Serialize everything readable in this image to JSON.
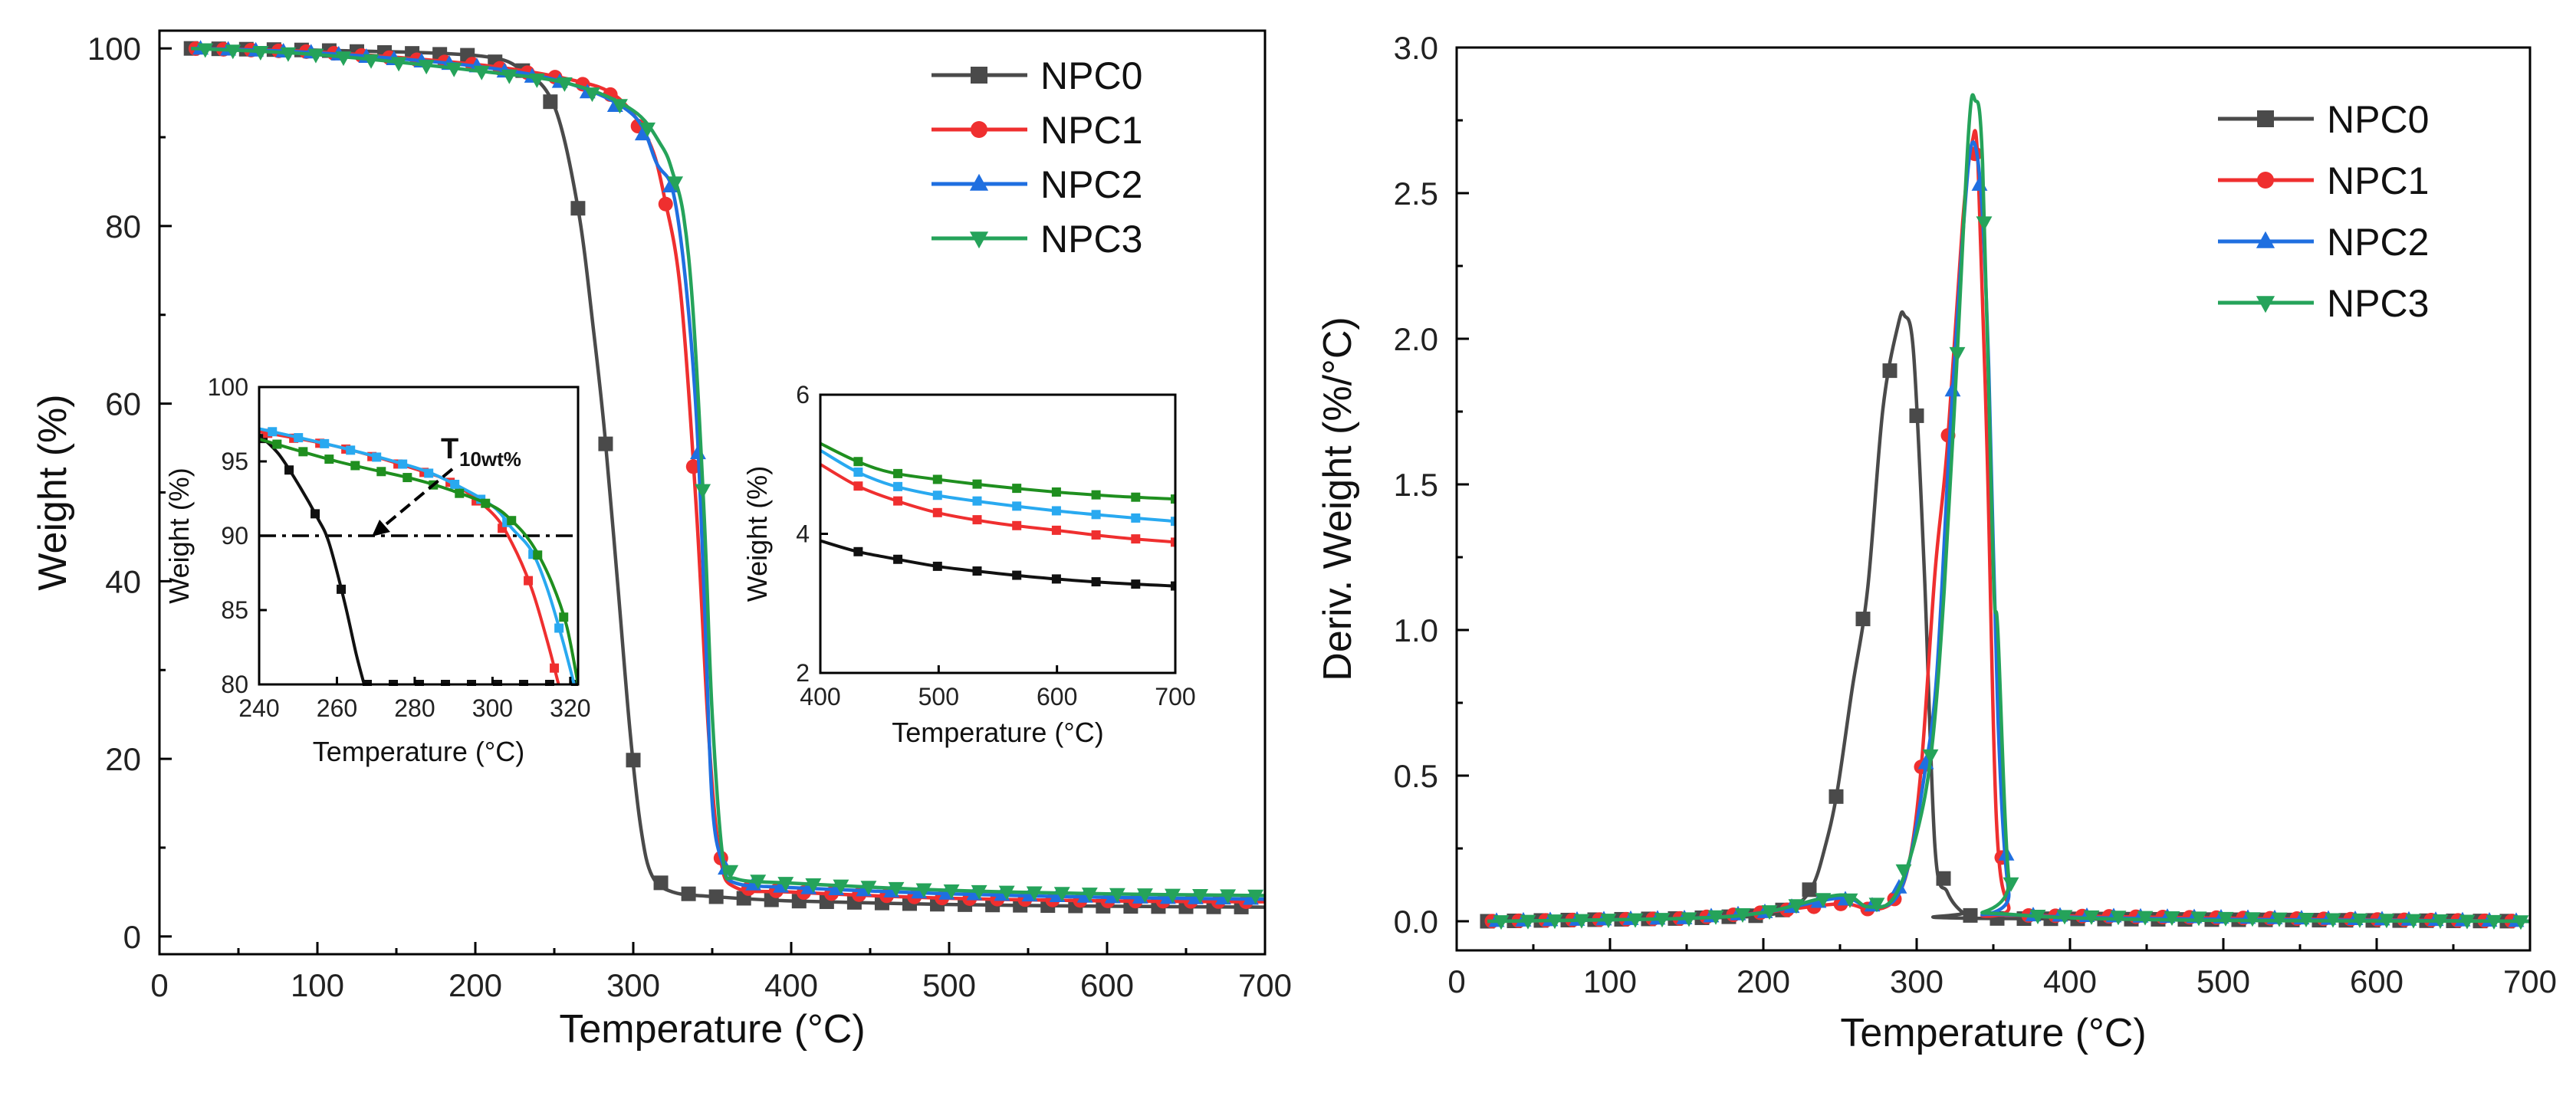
{
  "colors": {
    "NPC0": "#4a4a4a",
    "NPC1": "#ef2f2f",
    "NPC2": "#1f6fe0",
    "NPC3": "#25a35a",
    "NPC0_inset": "#111111",
    "NPC2_inset": "#29a9f0",
    "NPC3_inset": "#1f8f1f"
  },
  "chart_data": [
    {
      "id": "tga",
      "type": "line",
      "title": "",
      "xlabel": "Temperature (°C)",
      "ylabel": "Weight (%)",
      "xlim": [
        0,
        700
      ],
      "ylim": [
        -2,
        102
      ],
      "xticks": [
        "0",
        "100",
        "200",
        "300",
        "400",
        "500",
        "600",
        "700"
      ],
      "yticks": [
        "0",
        "20",
        "40",
        "60",
        "80",
        "100"
      ],
      "legend": "top-right",
      "series": [
        {
          "name": "NPC0",
          "marker": "square",
          "points": [
            [
              20,
              100
            ],
            [
              100,
              99.8
            ],
            [
              200,
              99.2
            ],
            [
              230,
              97.5
            ],
            [
              250,
              93.5
            ],
            [
              265,
              82
            ],
            [
              275,
              68
            ],
            [
              282,
              56.5
            ],
            [
              290,
              40
            ],
            [
              298,
              23
            ],
            [
              305,
              12
            ],
            [
              312,
              6.8
            ],
            [
              325,
              5
            ],
            [
              350,
              4.5
            ],
            [
              400,
              4
            ],
            [
              500,
              3.6
            ],
            [
              600,
              3.4
            ],
            [
              700,
              3.3
            ]
          ]
        },
        {
          "name": "NPC1",
          "marker": "circle",
          "points": [
            [
              20,
              100
            ],
            [
              100,
              99.6
            ],
            [
              200,
              98.2
            ],
            [
              260,
              96.5
            ],
            [
              290,
              94.5
            ],
            [
              310,
              89.5
            ],
            [
              320,
              83
            ],
            [
              330,
              72.5
            ],
            [
              340,
              48
            ],
            [
              348,
              22
            ],
            [
              355,
              9
            ],
            [
              365,
              5.5
            ],
            [
              400,
              5
            ],
            [
              500,
              4.3
            ],
            [
              600,
              4
            ],
            [
              700,
              3.9
            ]
          ]
        },
        {
          "name": "NPC2",
          "marker": "triangle-up",
          "points": [
            [
              20,
              100
            ],
            [
              100,
              99.5
            ],
            [
              200,
              98
            ],
            [
              260,
              96
            ],
            [
              300,
              92.5
            ],
            [
              315,
              87
            ],
            [
              325,
              84
            ],
            [
              333,
              74
            ],
            [
              340,
              58.5
            ],
            [
              345,
              38
            ],
            [
              350,
              15
            ],
            [
              357,
              8
            ],
            [
              365,
              6
            ],
            [
              400,
              5.5
            ],
            [
              500,
              4.8
            ],
            [
              600,
              4.4
            ],
            [
              700,
              4.2
            ]
          ]
        },
        {
          "name": "NPC3",
          "marker": "triangle-down",
          "points": [
            [
              20,
              100
            ],
            [
              100,
              99.3
            ],
            [
              200,
              97.5
            ],
            [
              260,
              96
            ],
            [
              300,
              93
            ],
            [
              318,
              89
            ],
            [
              325,
              86
            ],
            [
              332,
              81
            ],
            [
              338,
              70
            ],
            [
              345,
              47
            ],
            [
              350,
              25
            ],
            [
              357,
              8.5
            ],
            [
              365,
              6.5
            ],
            [
              400,
              6
            ],
            [
              500,
              5.2
            ],
            [
              600,
              4.8
            ],
            [
              700,
              4.6
            ]
          ]
        }
      ]
    },
    {
      "id": "inset-onset",
      "type": "line",
      "xlabel": "Temperature (°C)",
      "ylabel": "Weight (%)",
      "xlim": [
        240,
        322
      ],
      "ylim": [
        80,
        100
      ],
      "xticks": [
        "240",
        "260",
        "280",
        "300",
        "320"
      ],
      "yticks": [
        "80",
        "85",
        "90",
        "95",
        "100"
      ],
      "reference_line": 90,
      "annotation_main": "T",
      "annotation_sub": "10wt%",
      "series": [
        {
          "name": "NPC0",
          "points": [
            [
              240,
              96.8
            ],
            [
              245,
              95.5
            ],
            [
              250,
              93.5
            ],
            [
              255,
              91.2
            ],
            [
              258,
              89.5
            ],
            [
              262,
              85.5
            ],
            [
              265,
              82
            ],
            [
              267,
              80
            ]
          ]
        },
        {
          "name": "NPC1",
          "points": [
            [
              240,
              97
            ],
            [
              260,
              96
            ],
            [
              280,
              94.5
            ],
            [
              290,
              93.5
            ],
            [
              300,
              91.5
            ],
            [
              305,
              89.5
            ],
            [
              310,
              86.5
            ],
            [
              314,
              83
            ],
            [
              317,
              80
            ]
          ]
        },
        {
          "name": "NPC2",
          "points": [
            [
              240,
              97.2
            ],
            [
              260,
              96
            ],
            [
              280,
              94.6
            ],
            [
              290,
              93.5
            ],
            [
              300,
              92
            ],
            [
              305,
              90.5
            ],
            [
              310,
              89
            ],
            [
              314,
              86.5
            ],
            [
              318,
              83
            ],
            [
              321,
              80
            ]
          ]
        },
        {
          "name": "NPC3",
          "points": [
            [
              240,
              96.5
            ],
            [
              260,
              95
            ],
            [
              280,
              93.8
            ],
            [
              290,
              93
            ],
            [
              300,
              92
            ],
            [
              305,
              91
            ],
            [
              310,
              89.5
            ],
            [
              315,
              87
            ],
            [
              319,
              84
            ],
            [
              322,
              80
            ]
          ]
        }
      ]
    },
    {
      "id": "inset-residue",
      "type": "line",
      "xlabel": "Temperature (°C)",
      "ylabel": "Weight (%)",
      "xlim": [
        400,
        700
      ],
      "ylim": [
        2,
        6
      ],
      "xticks": [
        "400",
        "500",
        "600",
        "700"
      ],
      "yticks": [
        "2",
        "4",
        "6"
      ],
      "series": [
        {
          "name": "NPC0",
          "points": [
            [
              400,
              3.9
            ],
            [
              430,
              3.75
            ],
            [
              460,
              3.65
            ],
            [
              500,
              3.53
            ],
            [
              550,
              3.43
            ],
            [
              600,
              3.35
            ],
            [
              650,
              3.29
            ],
            [
              700,
              3.25
            ]
          ]
        },
        {
          "name": "NPC1",
          "points": [
            [
              400,
              5.0
            ],
            [
              430,
              4.7
            ],
            [
              460,
              4.5
            ],
            [
              500,
              4.3
            ],
            [
              550,
              4.15
            ],
            [
              600,
              4.05
            ],
            [
              650,
              3.95
            ],
            [
              700,
              3.88
            ]
          ]
        },
        {
          "name": "NPC2",
          "points": [
            [
              400,
              5.2
            ],
            [
              430,
              4.9
            ],
            [
              460,
              4.7
            ],
            [
              500,
              4.55
            ],
            [
              550,
              4.43
            ],
            [
              600,
              4.33
            ],
            [
              650,
              4.25
            ],
            [
              700,
              4.18
            ]
          ]
        },
        {
          "name": "NPC3",
          "points": [
            [
              400,
              5.3
            ],
            [
              430,
              5.05
            ],
            [
              460,
              4.88
            ],
            [
              500,
              4.78
            ],
            [
              550,
              4.68
            ],
            [
              600,
              4.6
            ],
            [
              650,
              4.54
            ],
            [
              700,
              4.5
            ]
          ]
        }
      ]
    },
    {
      "id": "dtg",
      "type": "line",
      "title": "",
      "xlabel": "Temperature (°C)",
      "ylabel": "Deriv. Weight (%/°C)",
      "xlim": [
        0,
        700
      ],
      "ylim": [
        -0.1,
        3.0
      ],
      "xticks": [
        "0",
        "100",
        "200",
        "300",
        "400",
        "500",
        "600",
        "700"
      ],
      "yticks": [
        "0.0",
        "0.5",
        "1.0",
        "1.5",
        "2.0",
        "2.5",
        "3.0"
      ],
      "legend": "top-right",
      "series": [
        {
          "name": "NPC0",
          "marker": "square",
          "points": [
            [
              20,
              0
            ],
            [
              150,
              0.01
            ],
            [
              200,
              0.02
            ],
            [
              220,
              0.05
            ],
            [
              232,
              0.12
            ],
            [
              240,
              0.25
            ],
            [
              248,
              0.44
            ],
            [
              258,
              0.8
            ],
            [
              268,
              1.14
            ],
            [
              278,
              1.76
            ],
            [
              288,
              2.05
            ],
            [
              292,
              2.08
            ],
            [
              298,
              1.95
            ],
            [
              305,
              1.2
            ],
            [
              312,
              0.25
            ],
            [
              320,
              0.1
            ],
            [
              330,
              0.03
            ],
            [
              340,
              0.01
            ],
            [
              700,
              0
            ]
          ]
        },
        {
          "name": "NPC1",
          "marker": "circle",
          "points": [
            [
              20,
              0
            ],
            [
              150,
              0.01
            ],
            [
              200,
              0.03
            ],
            [
              250,
              0.06
            ],
            [
              270,
              0.04
            ],
            [
              285,
              0.07
            ],
            [
              295,
              0.2
            ],
            [
              303,
              0.53
            ],
            [
              312,
              1.2
            ],
            [
              320,
              1.63
            ],
            [
              330,
              2.4
            ],
            [
              336,
              2.67
            ],
            [
              340,
              2.6
            ],
            [
              346,
              1.6
            ],
            [
              352,
              0.35
            ],
            [
              360,
              0.05
            ],
            [
              370,
              0.02
            ],
            [
              700,
              0
            ]
          ]
        },
        {
          "name": "NPC2",
          "marker": "triangle-up",
          "points": [
            [
              20,
              0
            ],
            [
              150,
              0.01
            ],
            [
              200,
              0.03
            ],
            [
              250,
              0.08
            ],
            [
              268,
              0.05
            ],
            [
              285,
              0.07
            ],
            [
              295,
              0.2
            ],
            [
              305,
              0.5
            ],
            [
              313,
              0.84
            ],
            [
              322,
              1.7
            ],
            [
              330,
              2.35
            ],
            [
              336,
              2.67
            ],
            [
              342,
              2.5
            ],
            [
              347,
              1.9
            ],
            [
              353,
              0.7
            ],
            [
              360,
              0.1
            ],
            [
              370,
              0.02
            ],
            [
              700,
              0
            ]
          ]
        },
        {
          "name": "NPC3",
          "marker": "triangle-down",
          "points": [
            [
              20,
              0
            ],
            [
              150,
              0.01
            ],
            [
              200,
              0.03
            ],
            [
              250,
              0.09
            ],
            [
              268,
              0.05
            ],
            [
              285,
              0.08
            ],
            [
              300,
              0.3
            ],
            [
              310,
              0.6
            ],
            [
              318,
              1.14
            ],
            [
              326,
              1.9
            ],
            [
              334,
              2.72
            ],
            [
              338,
              2.82
            ],
            [
              343,
              2.6
            ],
            [
              350,
              1.2
            ],
            [
              353,
              0.99
            ],
            [
              360,
              0.15
            ],
            [
              370,
              0.02
            ],
            [
              700,
              0
            ]
          ]
        }
      ]
    }
  ]
}
